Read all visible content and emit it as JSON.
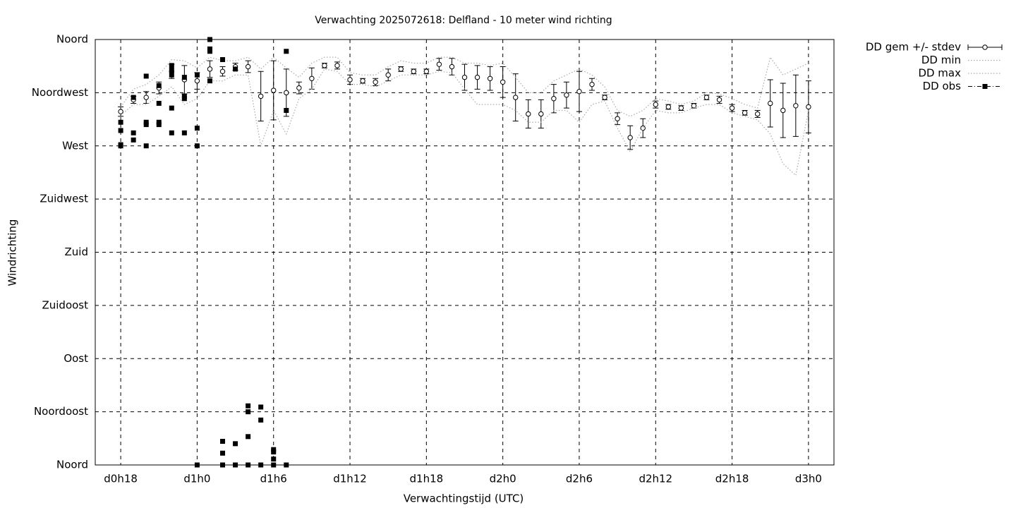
{
  "chart_data": {
    "type": "errorbar",
    "title": "Verwachting 2025072618: Delfland - 10 meter wind richting",
    "xlabel": "Verwachtingstijd (UTC)",
    "ylabel": "Windrichting",
    "xlim": [
      16,
      74
    ],
    "xticks": [
      {
        "value": 18,
        "label": "d0h18"
      },
      {
        "value": 24,
        "label": "d1h0"
      },
      {
        "value": 30,
        "label": "d1h6"
      },
      {
        "value": 36,
        "label": "d1h12"
      },
      {
        "value": 42,
        "label": "d1h18"
      },
      {
        "value": 48,
        "label": "d2h0"
      },
      {
        "value": 54,
        "label": "d2h6"
      },
      {
        "value": 60,
        "label": "d2h12"
      },
      {
        "value": 66,
        "label": "d2h18"
      },
      {
        "value": 72,
        "label": "d3h0"
      }
    ],
    "ylim": [
      0,
      360
    ],
    "yticks": [
      {
        "value": 0,
        "label": "Noord"
      },
      {
        "value": 45,
        "label": "Noordoost"
      },
      {
        "value": 90,
        "label": "Oost"
      },
      {
        "value": 135,
        "label": "Zuidoost"
      },
      {
        "value": 180,
        "label": "Zuid"
      },
      {
        "value": 225,
        "label": "Zuidwest"
      },
      {
        "value": 270,
        "label": "West"
      },
      {
        "value": 315,
        "label": "Noordwest"
      },
      {
        "value": 360,
        "label": "Noord"
      }
    ],
    "grid": true,
    "legend": "outside-top-right",
    "x": [
      18,
      19,
      20,
      21,
      22,
      23,
      24,
      25,
      26,
      27,
      28,
      29,
      30,
      31,
      32,
      33,
      34,
      35,
      36,
      37,
      38,
      39,
      40,
      41,
      42,
      43,
      44,
      45,
      46,
      47,
      48,
      49,
      50,
      51,
      52,
      53,
      54,
      55,
      56,
      57,
      58,
      59,
      60,
      61,
      62,
      63,
      64,
      65,
      66,
      67,
      68,
      69,
      70,
      71,
      72
    ],
    "series": [
      {
        "name": "DD gem +/- stdev",
        "style": "errorbar",
        "color": "#000000",
        "values": [
          299,
          309,
          311,
          319,
          333,
          326,
          325,
          335,
          333,
          337,
          337,
          312,
          317,
          315,
          319,
          327,
          338,
          338,
          326,
          325,
          324,
          330,
          335,
          333,
          333,
          339,
          337,
          328,
          328,
          327,
          324,
          311,
          297,
          297,
          310,
          313,
          316,
          322,
          311,
          293,
          277,
          285,
          305,
          303,
          302,
          304,
          311,
          309,
          302,
          298,
          297,
          306,
          300,
          304,
          303
        ],
        "errors": [
          4,
          3,
          5,
          5,
          6,
          12,
          7,
          7,
          4,
          3,
          5,
          21,
          25,
          20,
          5,
          9,
          2,
          3,
          4,
          2,
          3,
          5,
          2,
          2,
          2,
          5,
          7,
          11,
          10,
          10,
          13,
          20,
          12,
          12,
          12,
          11,
          17,
          5,
          2,
          5,
          10,
          8,
          3,
          2,
          2,
          2,
          2,
          3,
          3,
          2,
          3,
          20,
          23,
          26,
          22
        ]
      },
      {
        "name": "DD min",
        "style": "dotted",
        "color": "#aaaaaa",
        "values": [
          296,
          305,
          305,
          312,
          320,
          305,
          310,
          325,
          325,
          330,
          330,
          270,
          300,
          280,
          310,
          318,
          335,
          333,
          322,
          322,
          320,
          325,
          330,
          330,
          330,
          333,
          332,
          318,
          305,
          305,
          305,
          300,
          290,
          290,
          300,
          300,
          290,
          305,
          308,
          285,
          265,
          285,
          300,
          298,
          298,
          302,
          305,
          305,
          298,
          295,
          292,
          280,
          255,
          245,
          300
        ]
      },
      {
        "name": "DD max",
        "style": "dotted",
        "color": "#aaaaaa",
        "values": [
          303,
          318,
          322,
          330,
          343,
          342,
          336,
          345,
          342,
          342,
          345,
          335,
          345,
          336,
          328,
          340,
          345,
          345,
          332,
          330,
          330,
          337,
          342,
          340,
          340,
          345,
          345,
          340,
          340,
          338,
          340,
          328,
          315,
          315,
          325,
          330,
          335,
          330,
          320,
          300,
          295,
          300,
          310,
          308,
          305,
          308,
          315,
          314,
          310,
          305,
          302,
          345,
          330,
          335,
          340
        ]
      },
      {
        "name": "DD obs",
        "style": "points",
        "color": "#000000",
        "x": [
          18,
          18,
          18,
          18,
          19,
          19,
          19,
          20,
          20,
          20,
          20,
          21,
          21,
          21,
          21,
          22,
          22,
          22,
          22,
          22,
          23,
          23,
          23,
          23,
          24,
          24,
          24,
          24,
          25,
          25,
          25,
          25,
          26,
          26,
          26,
          26,
          27,
          27,
          27,
          28,
          28,
          28,
          28,
          29,
          29,
          29,
          30,
          30,
          30,
          30,
          31,
          31,
          31
        ],
        "values": [
          270,
          271,
          283,
          290,
          311,
          281,
          275,
          329,
          270,
          288,
          290,
          321,
          306,
          290,
          288,
          338,
          334,
          330,
          302,
          281,
          328,
          312,
          310,
          281,
          330,
          285,
          270,
          0,
          360,
          352,
          350,
          325,
          343,
          20,
          10,
          0,
          335,
          18,
          0,
          50,
          45,
          24,
          0,
          49,
          38,
          0,
          13,
          11,
          5,
          0,
          350,
          300,
          0
        ]
      }
    ]
  }
}
